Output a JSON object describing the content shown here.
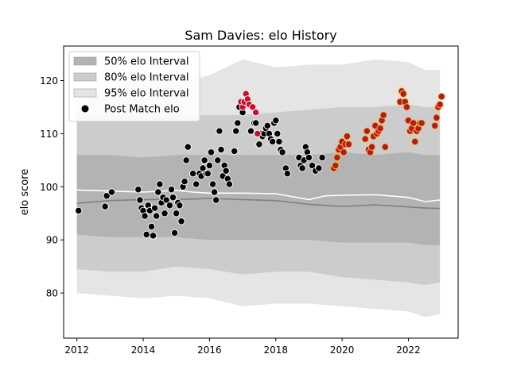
{
  "chart_data": {
    "type": "scatter",
    "title": "Sam Davies: elo History",
    "xlabel": "",
    "ylabel": "elo score",
    "xlim": [
      2011.6,
      2023.5
    ],
    "ylim": [
      71.5,
      126.5
    ],
    "xticks": [
      2012,
      2014,
      2016,
      2018,
      2020,
      2022
    ],
    "yticks": [
      80,
      90,
      100,
      110,
      120
    ],
    "grid": false,
    "legend_position": "top-left",
    "legend": [
      {
        "label": "50% elo Interval",
        "kind": "band",
        "color": "#b3b3b3"
      },
      {
        "label": "80% elo Interval",
        "kind": "band",
        "color": "#cccccc"
      },
      {
        "label": "95% elo Interval",
        "kind": "band",
        "color": "#e5e5e5"
      },
      {
        "label": "Post Match elo",
        "kind": "marker",
        "color": "#000000"
      }
    ],
    "bands": {
      "x": [
        2012.0,
        2013.0,
        2014.0,
        2015.0,
        2016.0,
        2017.0,
        2018.0,
        2019.0,
        2020.0,
        2021.0,
        2022.0,
        2022.5,
        2022.95
      ],
      "p95_low": [
        80,
        79.5,
        79,
        79.5,
        79,
        77.5,
        78,
        78,
        77.5,
        77,
        76.5,
        75.5,
        76
      ],
      "p80_low": [
        84.5,
        84,
        84,
        85,
        84.5,
        83.5,
        84,
        84,
        83,
        82.5,
        82,
        81.5,
        82
      ],
      "p50_low": [
        91,
        90.5,
        90.5,
        90.5,
        90,
        90,
        90,
        90,
        89.5,
        89.5,
        89.5,
        89,
        89
      ],
      "p50_high": [
        106,
        106,
        105.5,
        106,
        106,
        106,
        106,
        106,
        106.5,
        106,
        106.5,
        106,
        106
      ],
      "p80_high": [
        113,
        113.5,
        113,
        113.5,
        113.5,
        113.5,
        114,
        114.5,
        115,
        115,
        115.5,
        115,
        115
      ],
      "p95_high": [
        117,
        118,
        122,
        119.5,
        121,
        124,
        122.5,
        123,
        123,
        124,
        123.5,
        122,
        122
      ]
    },
    "lines": [
      {
        "color": "#ffffff",
        "x": [
          2012.0,
          2013.0,
          2014.0,
          2015.0,
          2015.5,
          2016.0,
          2017.0,
          2018.0,
          2019.0,
          2019.5,
          2020.0,
          2021.0,
          2022.0,
          2022.5,
          2022.95
        ],
        "values": [
          99.4,
          99.2,
          99.0,
          99.3,
          99.0,
          98.8,
          98.8,
          98.7,
          97.6,
          98.3,
          98.4,
          98.5,
          98.0,
          97.2,
          97.5
        ]
      },
      {
        "color": "#808080",
        "x": [
          2012.0,
          2013.0,
          2014.0,
          2015.0,
          2016.0,
          2017.0,
          2018.0,
          2019.0,
          2020.0,
          2021.0,
          2022.0,
          2022.5,
          2022.95
        ],
        "values": [
          96.9,
          97.4,
          97.6,
          97.6,
          97.8,
          97.6,
          97.4,
          96.7,
          96.3,
          96.6,
          96.2,
          96.0,
          95.9
        ]
      }
    ],
    "series": [
      {
        "color": "#000000",
        "edge": "#ffffff",
        "x": [
          2012.05,
          2012.85,
          2012.9,
          2013.05,
          2013.85,
          2013.9,
          2013.95,
          2014.0,
          2014.05,
          2014.1,
          2014.15,
          2014.2,
          2014.25,
          2014.3,
          2014.35,
          2014.4,
          2014.45,
          2014.5,
          2014.55,
          2014.6,
          2014.65,
          2014.7,
          2014.8,
          2014.85,
          2014.9,
          2014.95,
          2015.0,
          2015.05,
          2015.1,
          2015.15,
          2015.2,
          2015.25,
          2015.3,
          2015.35,
          2015.5,
          2015.6,
          2015.7,
          2015.75,
          2015.8,
          2015.85,
          2015.9,
          2015.95,
          2016.0,
          2016.05,
          2016.1,
          2016.15,
          2016.2,
          2016.25,
          2016.3,
          2016.35,
          2016.4,
          2016.45,
          2016.5,
          2016.55,
          2016.6,
          2016.75,
          2016.8,
          2016.85,
          2016.9,
          2017.0,
          2017.25,
          2017.35,
          2017.4,
          2017.5,
          2017.55,
          2017.6,
          2017.65,
          2017.7,
          2017.75,
          2017.8,
          2017.85,
          2017.9,
          2017.95,
          2018.0,
          2018.05,
          2018.1,
          2018.15,
          2018.2,
          2018.3,
          2018.35,
          2018.7,
          2018.75,
          2018.8,
          2018.85,
          2018.9,
          2018.95,
          2019.0,
          2019.1,
          2019.2,
          2019.3,
          2019.4
        ],
        "values": [
          95.5,
          96.3,
          98.3,
          99.0,
          99.5,
          97.5,
          96.0,
          95.5,
          94.5,
          91.0,
          96.5,
          95.5,
          92.5,
          90.8,
          96.0,
          94.5,
          99.0,
          100.5,
          97.0,
          98.0,
          95.0,
          97.5,
          96.5,
          99.5,
          98.0,
          91.3,
          95.0,
          97.0,
          96.5,
          93.5,
          100.0,
          101.0,
          105.0,
          107.5,
          102.5,
          100.5,
          102.5,
          102.0,
          103.5,
          105.0,
          102.5,
          102.5,
          104.0,
          106.5,
          100.5,
          99.0,
          97.5,
          105.0,
          110.5,
          107.0,
          102.0,
          104.0,
          103.0,
          101.5,
          100.5,
          106.7,
          110.5,
          112.0,
          115.0,
          114.0,
          110.5,
          112.0,
          112.0,
          108.0,
          110.0,
          109.5,
          110.0,
          111.0,
          111.5,
          110.0,
          109.0,
          108.5,
          112.0,
          112.5,
          110.0,
          108.5,
          107.0,
          106.5,
          103.5,
          102.5,
          105.5,
          104.0,
          103.5,
          105.0,
          107.5,
          106.5,
          105.5,
          104.0,
          103.0,
          103.5,
          105.5
        ]
      },
      {
        "color": "#c8102e",
        "edge": "#ffffff",
        "x": [
          2016.95,
          2017.0,
          2017.05,
          2017.1,
          2017.15,
          2017.2,
          2017.3,
          2017.4,
          2017.45
        ],
        "values": [
          116.0,
          115.0,
          116.0,
          117.5,
          116.5,
          115.5,
          115.0,
          114.0,
          110.0
        ]
      },
      {
        "color": "#b51b1b",
        "edge": "#f2c14e",
        "x": [
          2019.75,
          2019.8,
          2019.85,
          2019.9,
          2019.95,
          2020.0,
          2020.05,
          2020.1,
          2020.15,
          2020.2,
          2020.7,
          2020.75,
          2020.8,
          2020.85,
          2020.9,
          2020.95,
          2021.0,
          2021.05,
          2021.1,
          2021.15,
          2021.2,
          2021.25,
          2021.3,
          2021.75,
          2021.8,
          2021.85,
          2021.9,
          2021.95,
          2022.0,
          2022.05,
          2022.1,
          2022.15,
          2022.2,
          2022.25,
          2022.3,
          2022.35,
          2022.4,
          2022.8,
          2022.85,
          2022.9,
          2022.95,
          2023.0
        ],
        "values": [
          103.5,
          104.0,
          105.5,
          107.0,
          107.5,
          108.5,
          106.5,
          108.0,
          109.5,
          108.0,
          109.0,
          110.5,
          107.0,
          106.5,
          107.5,
          109.5,
          111.5,
          110.0,
          110.5,
          111.0,
          112.5,
          113.5,
          107.5,
          116.0,
          118.0,
          117.5,
          116.0,
          115.0,
          112.5,
          110.5,
          111.0,
          112.0,
          108.5,
          110.5,
          111.0,
          112.0,
          112.0,
          111.5,
          113.0,
          115.0,
          115.5,
          117.0
        ]
      }
    ]
  }
}
